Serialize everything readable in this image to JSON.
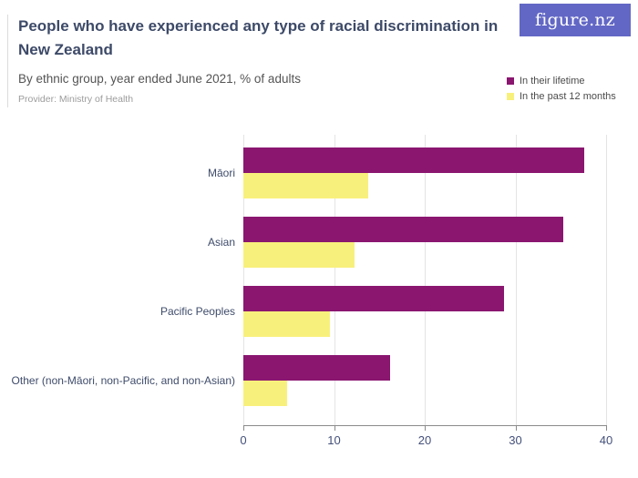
{
  "header": {
    "title": "People who have experienced any type of racial discrimination in New Zealand",
    "subtitle": "By ethnic group, year ended June 2021, % of adults",
    "provider": "Provider: Ministry of Health",
    "logo_text": "figure.nz",
    "logo_bg_color": "#6267c5"
  },
  "colors": {
    "title_text": "#3d4a68",
    "subtitle_text": "#545454",
    "provider_text": "#9c9c9c",
    "axis_text": "#44507a",
    "category_text": "#3f4c6b",
    "gridline": "#e4e4e4",
    "axis_line": "#8a8a8a",
    "lifetime_purple": "#8a1670",
    "past12_yellow": "#f8f07c"
  },
  "chart_data": {
    "type": "bar",
    "orientation": "horizontal",
    "title": "People who have experienced any type of racial discrimination in New Zealand",
    "subtitle": "By ethnic group, year ended June 2021, % of adults",
    "categories": [
      "Māori",
      "Asian",
      "Pacific Peoples",
      "Other (non-Māori, non-Pacific, and non-Asian)"
    ],
    "series": [
      {
        "name": "In their lifetime",
        "color": "#8a1670",
        "values": [
          37.6,
          35.3,
          28.7,
          16.2
        ]
      },
      {
        "name": "In the past 12 months",
        "color": "#f8f07c",
        "values": [
          13.8,
          12.3,
          9.5,
          4.8
        ]
      }
    ],
    "xlabel": "",
    "ylabel": "",
    "xlim": [
      0,
      40
    ],
    "xticks": [
      0,
      10,
      20,
      30,
      40
    ],
    "grid": true,
    "legend_position": "top-right"
  }
}
